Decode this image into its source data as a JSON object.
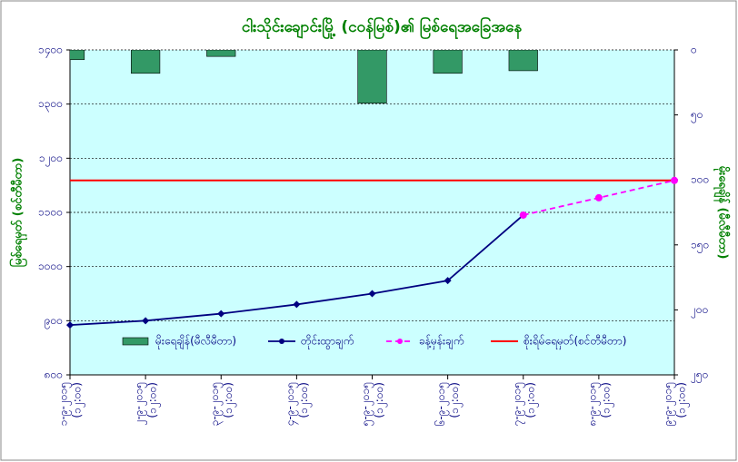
{
  "chart_data": {
    "type": "combo",
    "title": "ငါးသိုင်းချောင်းမြို့ (ငဝန်မြစ်)၏ မြစ်ရေအခြေအနေ",
    "y_label": "မြစ်ရေမှတ် (စင်တီမီတာ)",
    "y2_label": "မိုးရေချိန် (မီလီမီတာ)",
    "categories": [
      [
        "၁-၉-၂၀၁၅",
        "(၁၂:၀၀)"
      ],
      [
        "၂-၉-၂၀၁၅",
        "(၁၂:၀၀)"
      ],
      [
        "၃-၉-၂၀၁၅",
        "(၁၂:၀၀)"
      ],
      [
        "၄-၉-၂၀၁၅",
        "(၁၂:၀၀)"
      ],
      [
        "၅-၉-၂၀၁၅",
        "(၁၂:၀၀)"
      ],
      [
        "၆-၉-၂၀၁၅",
        "(၁၂:၀၀)"
      ],
      [
        "၇-၉-၂၀၁၅",
        "(၁၂:၀၀)"
      ],
      [
        "၈-၉-၂၀၁၅",
        "(၁၂:၀၀)"
      ],
      [
        "၉-၉-၂၀၁၅",
        "(၁၂:၀၀)"
      ]
    ],
    "ylim": [
      800,
      1400
    ],
    "yticks": [
      {
        "value": 800,
        "label": "၈၀၀"
      },
      {
        "value": 900,
        "label": "၉၀၀"
      },
      {
        "value": 1000,
        "label": "၁၀၀၀"
      },
      {
        "value": 1100,
        "label": "၁၁၀၀"
      },
      {
        "value": 1200,
        "label": "၁၂၀၀"
      },
      {
        "value": 1300,
        "label": "၁၃၀၀"
      },
      {
        "value": 1400,
        "label": "၁၄၀၀"
      }
    ],
    "y2lim": [
      250,
      0
    ],
    "y2ticks": [
      {
        "value": 0,
        "label": "၀"
      },
      {
        "value": 50,
        "label": "၅၀"
      },
      {
        "value": 100,
        "label": "၁၀၀"
      },
      {
        "value": 150,
        "label": "၁၅၀"
      },
      {
        "value": 200,
        "label": "၂၀၀"
      },
      {
        "value": 250,
        "label": "၂၅၀"
      }
    ],
    "grid": true,
    "series": [
      {
        "name": "မိုးရေချိန်(မီလီမီတာ)",
        "kind": "bar",
        "axis": "y2",
        "color": "#339966",
        "values": [
          7.5,
          18,
          5,
          0,
          41,
          18,
          16,
          null,
          null
        ]
      },
      {
        "name": "တိုင်းထွာချက်",
        "kind": "line",
        "color": "#000080",
        "marker": "diamond",
        "values": [
          892,
          900,
          913,
          930,
          950,
          974,
          1095,
          null,
          null
        ]
      },
      {
        "name": "ခန့်မှန်းချက်",
        "kind": "line",
        "dashed": true,
        "color": "#ff00ff",
        "marker": "circle",
        "values": [
          null,
          null,
          null,
          null,
          null,
          null,
          1095,
          1127,
          1159
        ]
      }
    ],
    "danger_level": {
      "name": "စိုးရိမ်ရေမှတ်(စင်တီမီတာ)",
      "color": "#ff0000",
      "value": 1159
    }
  }
}
